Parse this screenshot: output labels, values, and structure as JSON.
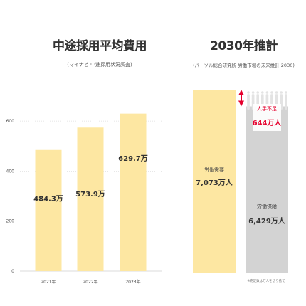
{
  "left": {
    "title": "中途採用平均費用",
    "subtitle": "(マイナビ 中途採用状況調査)"
  },
  "right": {
    "title": "2030年推計",
    "subtitle": "(パーソル総合研究所 労働市場の未来推計 2030)",
    "shortage_label": "人手不足",
    "shortage_value": "644万人",
    "footnote": "※充足数は万人を切り捨て"
  },
  "colors": {
    "bar": "#FDE7A2",
    "supply": "#D3D3D3",
    "arrow": "#E5002D",
    "people": "#E3E3E3",
    "grid": "#CFCFCF"
  },
  "chart_data": [
    {
      "type": "bar",
      "title": "中途採用平均費用",
      "categories": [
        "2021年",
        "2022年",
        "2023年"
      ],
      "values": [
        484.3,
        573.9,
        629.7
      ],
      "data_labels": [
        "484.3万",
        "573.9万",
        "629.7万"
      ],
      "y_ticks": [
        0,
        200,
        400,
        600
      ],
      "ylim": [
        0,
        660
      ],
      "grid": true
    },
    {
      "type": "bar",
      "title": "2030年推計",
      "categories": [
        "労働需要",
        "労働供給"
      ],
      "values": [
        7073,
        6429
      ],
      "data_labels": [
        "7,073万人",
        "6,429万人"
      ],
      "shortage": 644
    }
  ]
}
